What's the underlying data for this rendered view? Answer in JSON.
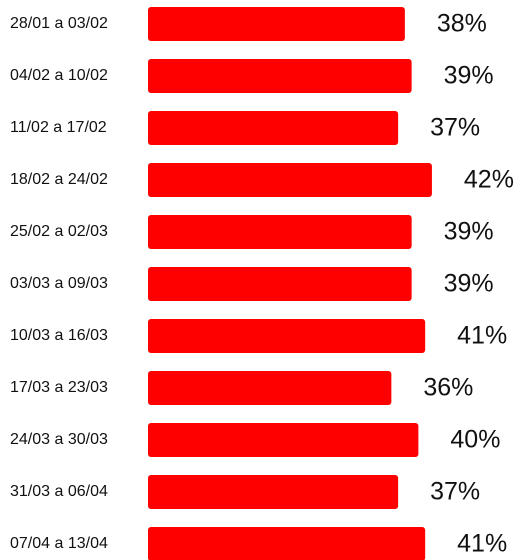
{
  "chart_data": {
    "type": "hbar",
    "categories": [
      "28/01 a 03/02",
      "04/02 a 10/02",
      "11/02 a 17/02",
      "18/02 a 24/02",
      "25/02 a 02/03",
      "03/03 a 09/03",
      "10/03 a 16/03",
      "17/03 a 23/03",
      "24/03 a 30/03",
      "31/03 a 06/04",
      "07/04 a 13/04"
    ],
    "values": [
      38,
      39,
      37,
      42,
      39,
      39,
      41,
      36,
      40,
      37,
      41
    ],
    "value_labels": [
      "38%",
      "39%",
      "37%",
      "42%",
      "39%",
      "39%",
      "41%",
      "36%",
      "40%",
      "37%",
      "41%"
    ],
    "color": "#ff0000"
  }
}
